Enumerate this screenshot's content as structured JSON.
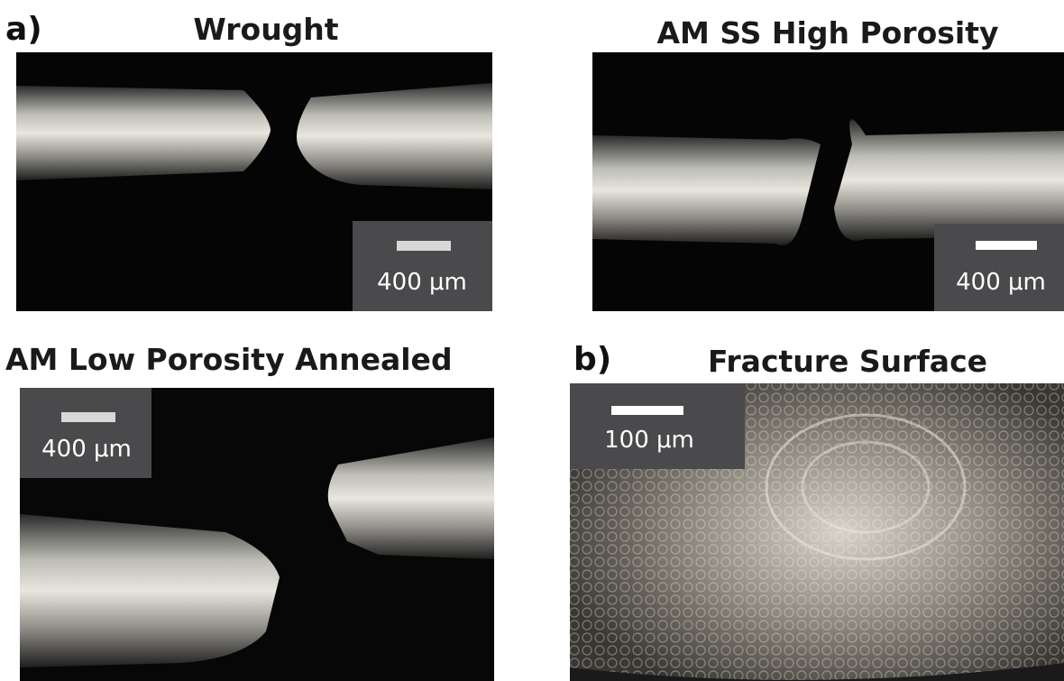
{
  "panels": [
    {
      "label": "a)",
      "title": "Wrought",
      "scale_bar": "400 μm"
    },
    {
      "title": "AM SS  High Porosity",
      "scale_bar": "400 μm"
    },
    {
      "title": "AM  Low Porosity  Annealed",
      "scale_bar": "400 μm"
    },
    {
      "label": "b)",
      "title": "Fracture Surface",
      "scale_bar": "100 μm"
    }
  ]
}
